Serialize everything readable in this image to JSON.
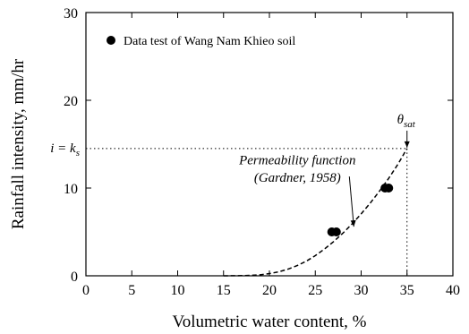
{
  "chart_data": {
    "type": "scatter",
    "xlabel": "Volumetric water content, %",
    "ylabel": "Rainfall intensity, mm/hr",
    "xlim": [
      0,
      40
    ],
    "ylim": [
      0,
      30
    ],
    "xticks": [
      0,
      5,
      10,
      15,
      20,
      25,
      30,
      35,
      40
    ],
    "yticks": [
      0,
      10,
      20,
      30
    ],
    "grid": false,
    "legend": {
      "position": "top-left",
      "label": "Data test of Wang Nam Khieo soil"
    },
    "series": [
      {
        "name": "Data test of Wang Nam Khieo soil",
        "type": "scatter",
        "x": [
          26.8,
          27.3,
          32.6,
          33.0
        ],
        "y": [
          5.0,
          5.0,
          10.0,
          10.0
        ]
      },
      {
        "name": "Permeability function (Gardner, 1958)",
        "type": "line",
        "style": "dashed",
        "x": [
          15,
          17,
          18,
          19,
          20,
          21,
          22,
          23,
          24,
          25,
          26,
          27,
          28,
          29,
          30,
          31,
          32,
          33,
          34,
          35
        ],
        "y": [
          0,
          0.02,
          0.05,
          0.12,
          0.25,
          0.45,
          0.75,
          1.15,
          1.65,
          2.3,
          3.05,
          3.9,
          4.85,
          5.9,
          7.05,
          8.3,
          9.65,
          11.1,
          12.7,
          14.5
        ]
      }
    ],
    "annotations": {
      "curve_label_line1": "Permeability function",
      "curve_label_line2": "(Gardner, 1958)",
      "ks_label_main": "i = k",
      "ks_label_sub": "s",
      "theta_label_main": "θ",
      "theta_label_sub": "sat",
      "ks_value": 14.5,
      "theta_sat_value": 35
    }
  }
}
